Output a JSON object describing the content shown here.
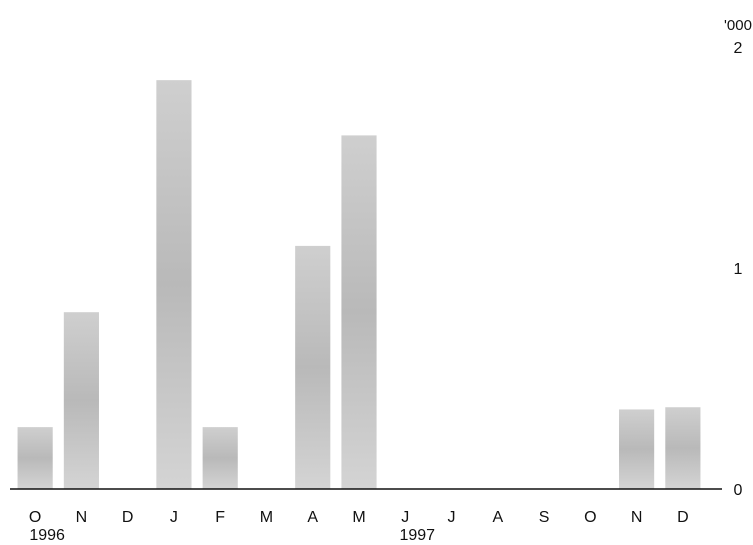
{
  "chart_data": {
    "type": "bar",
    "title": "",
    "xlabel": "",
    "ylabel": "",
    "y_unit_label": "'000",
    "categories": [
      "O",
      "N",
      "D",
      "J",
      "F",
      "M",
      "A",
      "M",
      "J",
      "J",
      "A",
      "S",
      "O",
      "N",
      "D"
    ],
    "year_labels": [
      {
        "category_index": 0,
        "label": "1996"
      },
      {
        "category_index": 8,
        "label": "1997"
      }
    ],
    "values": [
      0.28,
      0.8,
      0.0,
      1.85,
      0.28,
      0.0,
      1.1,
      1.6,
      0.0,
      0.0,
      0.0,
      0.0,
      0.0,
      0.36,
      0.37
    ],
    "ylim": [
      0,
      2
    ],
    "yticks": [
      0,
      1,
      2
    ],
    "ytick_labels": [
      "0",
      "1",
      "2"
    ],
    "grid": false,
    "legend": "none",
    "colors": {
      "bar": "#b9b9b9",
      "bar_dark": "#8a8a8a",
      "axis": "#111111"
    }
  }
}
